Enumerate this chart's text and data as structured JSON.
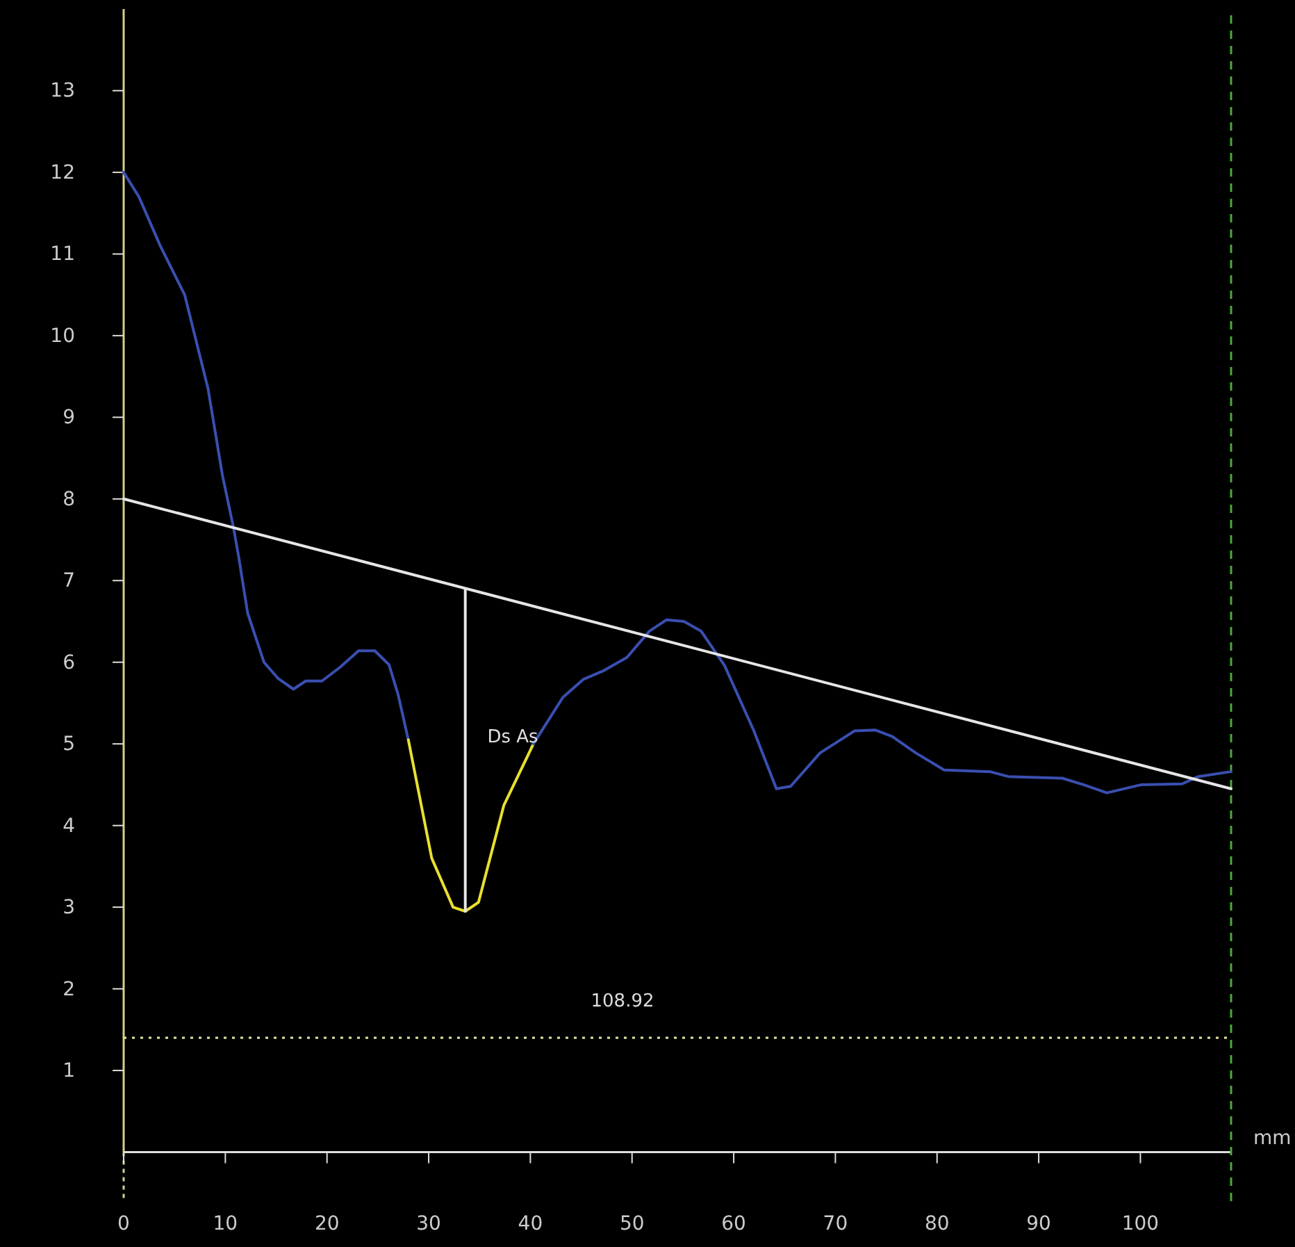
{
  "chart_data": {
    "type": "line",
    "xlabel": "mm",
    "xlim": [
      0,
      108.92
    ],
    "ylim": [
      -0.6,
      14
    ],
    "xticks": [
      0,
      10,
      20,
      30,
      40,
      50,
      60,
      70,
      80,
      90,
      100
    ],
    "yticks": [
      1,
      2,
      3,
      4,
      5,
      6,
      7,
      8,
      9,
      10,
      11,
      12,
      13
    ],
    "grid": false,
    "marker": "none",
    "line_style": "solid",
    "series": [
      {
        "color": "#3a4fb0",
        "x": [
          0,
          1.5,
          3.6,
          6,
          8.3,
          9.7,
          10.8,
          11.3,
          12.2,
          13.8,
          15.2,
          16.7,
          17.9,
          19.5,
          21.3,
          23.1,
          24.7,
          26.1,
          27,
          28
        ],
        "values": [
          12.0,
          11.7,
          11.1,
          10.5,
          9.35,
          8.3,
          7.65,
          7.3,
          6.6,
          6.0,
          5.8,
          5.67,
          5.77,
          5.77,
          5.94,
          6.14,
          6.14,
          5.97,
          5.6,
          5.05
        ]
      },
      {
        "color": "#e8e030",
        "x": [
          28,
          30.3,
          32.4,
          33.6,
          34.9,
          37.4,
          40.3
        ],
        "values": [
          5.05,
          3.6,
          3.0,
          2.95,
          3.06,
          4.25,
          5.0
        ]
      },
      {
        "color": "#3a4fb0",
        "x": [
          40.3,
          43.2,
          45.2,
          47.1,
          49.5,
          51.7,
          53.4,
          55.1,
          56.8,
          59.1,
          61.95,
          64.2,
          65.6,
          68.5,
          71.9,
          73.9,
          75.6,
          77.9,
          80.7,
          85.2,
          87,
          92.3,
          94.4,
          96.7,
          100.1,
          104.1,
          105.7,
          108.9
        ],
        "values": [
          5.0,
          5.57,
          5.79,
          5.89,
          6.06,
          6.38,
          6.52,
          6.5,
          6.38,
          5.96,
          5.17,
          4.45,
          4.48,
          4.89,
          5.16,
          5.17,
          5.09,
          4.89,
          4.68,
          4.66,
          4.6,
          4.58,
          4.5,
          4.4,
          4.5,
          4.51,
          4.6,
          4.66
        ]
      },
      {
        "type": "line",
        "color": "#e6e6e6",
        "x": [
          0,
          108.92
        ],
        "values": [
          8.0,
          4.45
        ]
      },
      {
        "type": "line",
        "color": "#e6e6e6",
        "x": [
          33.6,
          33.6
        ],
        "values": [
          2.95,
          6.9
        ]
      }
    ],
    "ref_lines": [
      {
        "axis": "y",
        "value": 1.4,
        "color": "#e6e6a0",
        "line_style": "dotted"
      },
      {
        "axis": "x",
        "value": 108.92,
        "color": "#4caa3a",
        "line_style": "dashed"
      }
    ],
    "annotations": [
      "108.92",
      "Ds As"
    ]
  }
}
